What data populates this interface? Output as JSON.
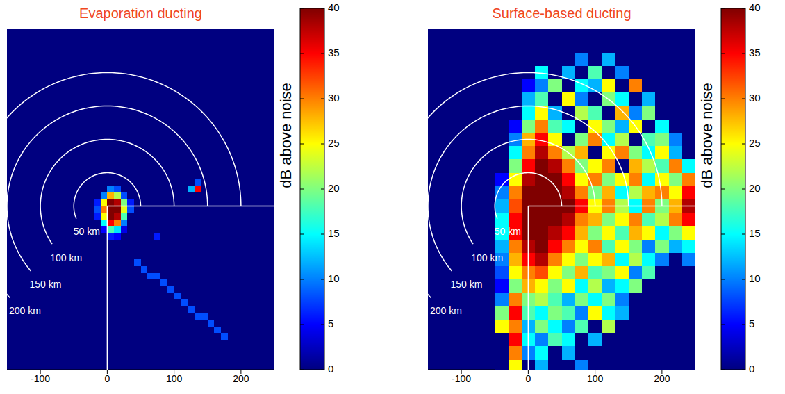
{
  "chart_data": [
    {
      "type": "heatmap",
      "title": "Evaporation ducting",
      "xlim": [
        -150,
        250
      ],
      "xticks": [
        -100,
        0,
        100,
        200
      ],
      "ylim": [
        -245,
        265
      ],
      "tick_labels": "x",
      "x": [
        -15,
        -5,
        5,
        15,
        25,
        35,
        45,
        55,
        65,
        75,
        85,
        95,
        105,
        115,
        125,
        135,
        145,
        155,
        165,
        175
      ],
      "y": [
        35,
        25,
        15,
        5,
        -5,
        -15,
        -25,
        -35,
        -45,
        -55,
        -65,
        -75,
        -85,
        -95,
        -105,
        -115,
        -125,
        -135,
        -145,
        -155,
        -165,
        -175,
        -185,
        -195
      ],
      "cells": [
        [
          0,
          0,
          0,
          0,
          0,
          0,
          0,
          0,
          0,
          0,
          0,
          0,
          0,
          0,
          0,
          8,
          0,
          0,
          0,
          0
        ],
        [
          0,
          0,
          10,
          8,
          0,
          0,
          0,
          0,
          0,
          0,
          0,
          0,
          0,
          0,
          12,
          35,
          0,
          0,
          0,
          0
        ],
        [
          0,
          10,
          28,
          22,
          8,
          0,
          0,
          0,
          0,
          0,
          0,
          0,
          0,
          0,
          0,
          0,
          0,
          0,
          0,
          0
        ],
        [
          6,
          25,
          40,
          38,
          20,
          6,
          0,
          0,
          0,
          0,
          0,
          0,
          0,
          0,
          0,
          0,
          0,
          0,
          0,
          0
        ],
        [
          8,
          30,
          40,
          40,
          24,
          8,
          0,
          0,
          0,
          0,
          0,
          0,
          0,
          0,
          0,
          0,
          0,
          0,
          0,
          0
        ],
        [
          6,
          25,
          40,
          38,
          18,
          0,
          0,
          0,
          0,
          0,
          0,
          0,
          0,
          0,
          0,
          0,
          0,
          0,
          0,
          0
        ],
        [
          0,
          15,
          35,
          30,
          10,
          0,
          0,
          0,
          0,
          0,
          0,
          0,
          0,
          0,
          0,
          0,
          0,
          0,
          0,
          0
        ],
        [
          0,
          5,
          18,
          14,
          4,
          0,
          0,
          0,
          0,
          0,
          0,
          0,
          0,
          0,
          0,
          0,
          0,
          0,
          0,
          0
        ],
        [
          0,
          0,
          6,
          5,
          0,
          0,
          0,
          0,
          0,
          6,
          0,
          0,
          0,
          0,
          0,
          0,
          0,
          0,
          0,
          0
        ],
        [
          0,
          0,
          0,
          0,
          0,
          0,
          0,
          0,
          0,
          0,
          0,
          0,
          0,
          0,
          0,
          0,
          0,
          0,
          0,
          0
        ],
        [
          0,
          0,
          0,
          0,
          0,
          0,
          0,
          0,
          0,
          0,
          0,
          0,
          0,
          0,
          0,
          0,
          0,
          0,
          0,
          0
        ],
        [
          0,
          0,
          0,
          0,
          0,
          0,
          0,
          0,
          0,
          0,
          0,
          0,
          0,
          0,
          0,
          0,
          0,
          0,
          0,
          0
        ],
        [
          0,
          0,
          0,
          0,
          0,
          0,
          8,
          0,
          0,
          0,
          0,
          0,
          0,
          0,
          0,
          0,
          0,
          0,
          0,
          0
        ],
        [
          0,
          0,
          0,
          0,
          0,
          0,
          0,
          8,
          0,
          0,
          0,
          0,
          0,
          0,
          0,
          0,
          0,
          0,
          0,
          0
        ],
        [
          0,
          0,
          0,
          0,
          0,
          0,
          0,
          0,
          8,
          8,
          0,
          0,
          0,
          0,
          0,
          0,
          0,
          0,
          0,
          0
        ],
        [
          0,
          0,
          0,
          0,
          0,
          0,
          0,
          0,
          0,
          0,
          8,
          0,
          0,
          0,
          0,
          0,
          0,
          0,
          0,
          0
        ],
        [
          0,
          0,
          0,
          0,
          0,
          0,
          0,
          0,
          0,
          0,
          0,
          8,
          0,
          0,
          0,
          0,
          0,
          0,
          0,
          0
        ],
        [
          0,
          0,
          0,
          0,
          0,
          0,
          0,
          0,
          0,
          0,
          0,
          0,
          8,
          0,
          0,
          0,
          0,
          0,
          0,
          0
        ],
        [
          0,
          0,
          0,
          0,
          0,
          0,
          0,
          0,
          0,
          0,
          0,
          0,
          0,
          8,
          0,
          0,
          0,
          0,
          0,
          0
        ],
        [
          0,
          0,
          0,
          0,
          0,
          0,
          0,
          0,
          0,
          0,
          0,
          0,
          0,
          0,
          8,
          0,
          0,
          0,
          0,
          0
        ],
        [
          0,
          0,
          0,
          0,
          0,
          0,
          0,
          0,
          0,
          0,
          0,
          0,
          0,
          0,
          0,
          8,
          8,
          0,
          0,
          0
        ],
        [
          0,
          0,
          0,
          0,
          0,
          0,
          0,
          0,
          0,
          0,
          0,
          0,
          0,
          0,
          0,
          0,
          0,
          8,
          0,
          0
        ],
        [
          0,
          0,
          0,
          0,
          0,
          0,
          0,
          0,
          0,
          0,
          0,
          0,
          0,
          0,
          0,
          0,
          0,
          0,
          8,
          0
        ],
        [
          0,
          0,
          0,
          0,
          0,
          0,
          0,
          0,
          0,
          0,
          0,
          0,
          0,
          0,
          0,
          0,
          0,
          0,
          0,
          8
        ]
      ],
      "colorbar": {
        "label": "dB above noise",
        "lim": [
          0,
          40
        ],
        "ticks": [
          0,
          5,
          10,
          15,
          20,
          25,
          30,
          35,
          40
        ]
      },
      "range_rings": [
        {
          "radius": 50,
          "label": "50 km"
        },
        {
          "radius": 100,
          "label": "100 km"
        },
        {
          "radius": 150,
          "label": "150 km"
        },
        {
          "radius": 200,
          "label": "200 km"
        }
      ]
    },
    {
      "type": "heatmap",
      "title": "Surface-based ducting",
      "xlim": [
        -150,
        250
      ],
      "xticks": [
        -100,
        0,
        100,
        200
      ],
      "ylim": [
        -245,
        265
      ],
      "tick_labels": "x",
      "x": [
        -40,
        -20,
        0,
        20,
        40,
        60,
        80,
        100,
        120,
        140,
        160,
        180,
        200,
        220,
        240
      ],
      "y": [
        240,
        220,
        200,
        180,
        160,
        140,
        120,
        100,
        80,
        60,
        40,
        20,
        0,
        -20,
        -40,
        -60,
        -80,
        -100,
        -120,
        -140,
        -160,
        -180,
        -200,
        -220,
        -240
      ],
      "cells": [
        [
          0,
          0,
          0,
          0,
          0,
          0,
          0,
          0,
          0,
          0,
          0,
          0,
          0,
          0,
          0
        ],
        [
          0,
          0,
          0,
          0,
          0,
          0,
          10,
          0,
          12,
          0,
          0,
          0,
          0,
          0,
          0
        ],
        [
          0,
          0,
          0,
          15,
          0,
          12,
          0,
          18,
          0,
          10,
          0,
          0,
          0,
          0,
          0
        ],
        [
          0,
          0,
          5,
          10,
          20,
          0,
          15,
          12,
          25,
          0,
          30,
          0,
          0,
          0,
          0
        ],
        [
          0,
          0,
          12,
          18,
          0,
          25,
          10,
          0,
          20,
          15,
          0,
          12,
          0,
          0,
          0
        ],
        [
          0,
          0,
          15,
          25,
          12,
          0,
          22,
          18,
          0,
          28,
          10,
          20,
          0,
          0,
          0
        ],
        [
          0,
          5,
          20,
          30,
          18,
          15,
          0,
          25,
          20,
          12,
          25,
          0,
          15,
          0,
          0
        ],
        [
          0,
          10,
          28,
          35,
          25,
          0,
          20,
          30,
          15,
          22,
          0,
          18,
          20,
          10,
          0
        ],
        [
          0,
          15,
          30,
          38,
          30,
          22,
          28,
          0,
          25,
          30,
          20,
          15,
          25,
          12,
          0
        ],
        [
          0,
          20,
          35,
          40,
          38,
          30,
          20,
          25,
          30,
          0,
          28,
          22,
          18,
          30,
          15
        ],
        [
          5,
          25,
          38,
          40,
          40,
          35,
          25,
          30,
          20,
          25,
          30,
          15,
          25,
          20,
          30
        ],
        [
          10,
          30,
          40,
          40,
          40,
          38,
          30,
          20,
          28,
          15,
          22,
          28,
          30,
          25,
          35
        ],
        [
          12,
          32,
          40,
          40,
          40,
          40,
          35,
          25,
          30,
          22,
          15,
          30,
          20,
          28,
          38
        ],
        [
          15,
          35,
          40,
          40,
          40,
          38,
          30,
          28,
          20,
          25,
          30,
          18,
          22,
          30,
          35
        ],
        [
          15,
          35,
          40,
          40,
          38,
          35,
          28,
          20,
          25,
          18,
          28,
          25,
          15,
          20,
          25
        ],
        [
          12,
          30,
          38,
          40,
          35,
          30,
          25,
          30,
          18,
          25,
          20,
          10,
          20,
          12,
          15
        ],
        [
          10,
          28,
          35,
          38,
          30,
          25,
          20,
          25,
          28,
          15,
          22,
          15,
          10,
          0,
          10
        ],
        [
          8,
          25,
          30,
          32,
          25,
          20,
          28,
          18,
          20,
          25,
          10,
          18,
          0,
          0,
          0
        ],
        [
          5,
          20,
          28,
          25,
          20,
          25,
          15,
          22,
          12,
          15,
          20,
          0,
          0,
          0,
          0
        ],
        [
          10,
          30,
          20,
          22,
          18,
          12,
          20,
          15,
          20,
          10,
          0,
          0,
          0,
          0,
          0
        ],
        [
          20,
          35,
          18,
          15,
          20,
          18,
          10,
          25,
          15,
          12,
          0,
          0,
          0,
          0,
          0
        ],
        [
          25,
          30,
          12,
          20,
          15,
          10,
          18,
          0,
          22,
          0,
          0,
          0,
          0,
          0,
          0
        ],
        [
          0,
          35,
          15,
          10,
          18,
          15,
          0,
          12,
          0,
          0,
          0,
          0,
          0,
          0,
          0
        ],
        [
          0,
          30,
          10,
          15,
          0,
          12,
          0,
          0,
          0,
          0,
          0,
          0,
          0,
          0,
          0
        ],
        [
          0,
          25,
          0,
          12,
          0,
          0,
          10,
          0,
          0,
          0,
          0,
          0,
          0,
          0,
          0
        ]
      ],
      "colorbar": {
        "label": "dB above noise",
        "lim": [
          0,
          40
        ],
        "ticks": [
          0,
          5,
          10,
          15,
          20,
          25,
          30,
          35,
          40
        ]
      },
      "range_rings": [
        {
          "radius": 50,
          "label": "50 km"
        },
        {
          "radius": 100,
          "label": "100 km"
        },
        {
          "radius": 150,
          "label": "150 km"
        },
        {
          "radius": 200,
          "label": "200 km"
        }
      ]
    }
  ]
}
